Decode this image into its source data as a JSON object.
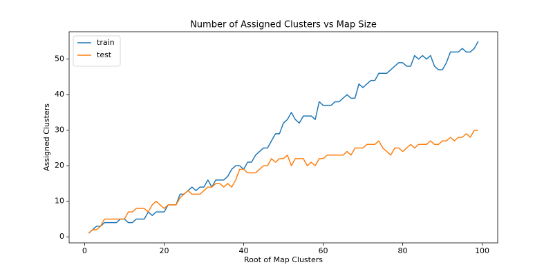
{
  "chart_data": {
    "type": "line",
    "title": "Number of Assigned Clusters vs Map Size",
    "x_label": "Root of Map Clusters",
    "y_label": "Assigned Clusters",
    "x": [
      1,
      2,
      3,
      4,
      5,
      6,
      7,
      8,
      9,
      10,
      11,
      12,
      13,
      14,
      15,
      16,
      17,
      18,
      19,
      20,
      21,
      22,
      23,
      24,
      25,
      26,
      27,
      28,
      29,
      30,
      31,
      32,
      33,
      34,
      35,
      36,
      37,
      38,
      39,
      40,
      41,
      42,
      43,
      44,
      45,
      46,
      47,
      48,
      49,
      50,
      51,
      52,
      53,
      54,
      55,
      56,
      57,
      58,
      59,
      60,
      61,
      62,
      63,
      64,
      65,
      66,
      67,
      68,
      69,
      70,
      71,
      72,
      73,
      74,
      75,
      76,
      77,
      78,
      79,
      80,
      81,
      82,
      83,
      84,
      85,
      86,
      87,
      88,
      89,
      90,
      91,
      92,
      93,
      94,
      95,
      96,
      97,
      98,
      99
    ],
    "series": [
      {
        "name": "train",
        "color": "#1f77b4",
        "values": [
          1,
          2,
          3,
          3,
          4,
          4,
          4,
          4,
          5,
          5,
          4,
          4,
          5,
          5,
          5,
          7,
          6,
          7,
          7,
          7,
          9,
          9,
          9,
          12,
          12,
          13,
          14,
          13,
          14,
          14,
          16,
          14,
          16,
          16,
          16,
          17,
          19,
          20,
          20,
          19,
          21,
          21,
          23,
          24,
          25,
          25,
          27,
          29,
          29,
          32,
          33,
          35,
          33,
          32,
          34,
          34,
          34,
          33,
          38,
          37,
          37,
          37,
          38,
          38,
          39,
          40,
          39,
          39,
          43,
          42,
          43,
          44,
          44,
          46,
          46,
          46,
          47,
          48,
          49,
          49,
          48,
          48,
          51,
          50,
          51,
          50,
          51,
          48,
          47,
          47,
          49,
          52,
          52,
          52,
          53,
          52,
          52,
          53,
          55
        ]
      },
      {
        "name": "test",
        "color": "#ff7f0e",
        "values": [
          1,
          2,
          2,
          3,
          5,
          5,
          5,
          5,
          5,
          5,
          7,
          7,
          8,
          8,
          8,
          7,
          9,
          10,
          9,
          8,
          9,
          9,
          9,
          11,
          12,
          13,
          12,
          12,
          12,
          13,
          14,
          14,
          15,
          15,
          14,
          15,
          14,
          16,
          19,
          19,
          18,
          18,
          18,
          19,
          20,
          20,
          22,
          21,
          22,
          22,
          23,
          20,
          22,
          22,
          22,
          20,
          21,
          20,
          22,
          22,
          23,
          23,
          23,
          23,
          23,
          24,
          23,
          25,
          25,
          25,
          26,
          26,
          26,
          27,
          25,
          24,
          23,
          25,
          25,
          24,
          25,
          26,
          25,
          26,
          26,
          26,
          27,
          26,
          26,
          27,
          27,
          28,
          27,
          28,
          28,
          29,
          28,
          30,
          30
        ]
      }
    ],
    "xlim": [
      -3.9,
      103.9
    ],
    "ylim": [
      -1.7,
      57.7
    ],
    "xticks": [
      0,
      20,
      40,
      60,
      80,
      100
    ],
    "yticks": [
      0,
      10,
      20,
      30,
      40,
      50
    ],
    "grid": false,
    "legend": "upper left"
  }
}
